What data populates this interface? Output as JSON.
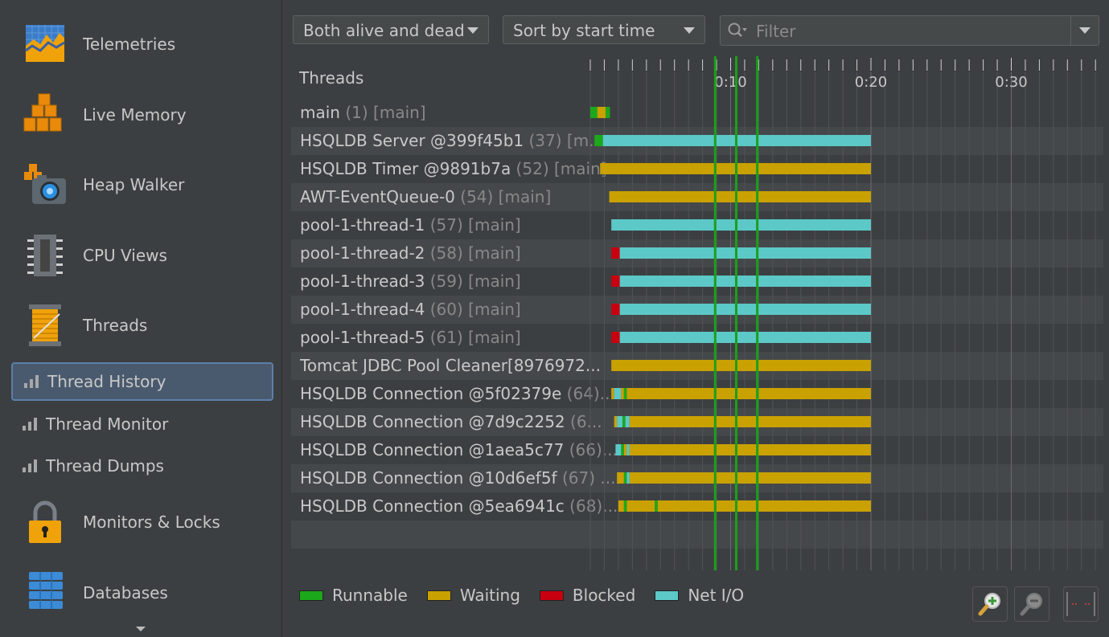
{
  "sidebar": {
    "items": [
      {
        "label": "Telemetries",
        "icon": "telemetries-icon"
      },
      {
        "label": "Live Memory",
        "icon": "live-memory-icon"
      },
      {
        "label": "Heap Walker",
        "icon": "heap-walker-icon"
      },
      {
        "label": "CPU Views",
        "icon": "cpu-views-icon"
      },
      {
        "label": "Threads",
        "icon": "threads-icon"
      }
    ],
    "subitems": [
      {
        "label": "Thread History",
        "selected": true
      },
      {
        "label": "Thread Monitor",
        "selected": false
      },
      {
        "label": "Thread Dumps",
        "selected": false
      }
    ],
    "items_bottom": [
      {
        "label": "Monitors & Locks",
        "icon": "lock-icon"
      },
      {
        "label": "Databases",
        "icon": "databases-icon"
      }
    ]
  },
  "toolbar": {
    "thread_filter": "Both alive and dead",
    "sort_mode": "Sort by start time",
    "filter_placeholder": "Filter"
  },
  "timeline": {
    "header": "Threads",
    "ticks": [
      "0:10",
      "0:20",
      "0:30"
    ],
    "tick_seconds": [
      10,
      20,
      30
    ],
    "markers_seconds": [
      8.9,
      10.4,
      11.9
    ],
    "threads": [
      {
        "name": "main",
        "meta": "(1) [main]",
        "segments": [
          [
            0,
            0.5,
            "runnable"
          ],
          [
            0.5,
            1.1,
            "waiting"
          ],
          [
            1.1,
            1.4,
            "runnable"
          ]
        ]
      },
      {
        "name": "HSQLDB Server @399f45b1",
        "meta": "(37) [m...",
        "segments": [
          [
            0.3,
            0.9,
            "runnable"
          ],
          [
            0.9,
            20,
            "netio"
          ]
        ]
      },
      {
        "name": "HSQLDB Timer @9891b7a",
        "meta": "(52) [main]",
        "segments": [
          [
            0.7,
            20,
            "waiting"
          ]
        ]
      },
      {
        "name": "AWT-EventQueue-0",
        "meta": "(54) [main]",
        "segments": [
          [
            1.35,
            20,
            "waiting"
          ]
        ]
      },
      {
        "name": "pool-1-thread-1",
        "meta": "(57) [main]",
        "segments": [
          [
            1.5,
            20,
            "netio"
          ]
        ]
      },
      {
        "name": "pool-1-thread-2",
        "meta": "(58) [main]",
        "segments": [
          [
            1.5,
            2.1,
            "blocked"
          ],
          [
            2.1,
            20,
            "netio"
          ]
        ]
      },
      {
        "name": "pool-1-thread-3",
        "meta": "(59) [main]",
        "segments": [
          [
            1.5,
            2.1,
            "blocked"
          ],
          [
            2.1,
            20,
            "netio"
          ]
        ]
      },
      {
        "name": "pool-1-thread-4",
        "meta": "(60) [main]",
        "segments": [
          [
            1.5,
            2.1,
            "blocked"
          ],
          [
            2.1,
            20,
            "netio"
          ]
        ]
      },
      {
        "name": "pool-1-thread-5",
        "meta": "(61) [main]",
        "segments": [
          [
            1.5,
            2.1,
            "blocked"
          ],
          [
            2.1,
            20,
            "netio"
          ]
        ]
      },
      {
        "name": "Tomcat JDBC Pool Cleaner[8976972...",
        "meta": "",
        "segments": [
          [
            1.5,
            20,
            "waiting"
          ]
        ]
      },
      {
        "name": "HSQLDB Connection @5f02379e",
        "meta": "(64)...",
        "segments": [
          [
            1.5,
            1.7,
            "waiting"
          ],
          [
            1.7,
            2.2,
            "netio"
          ],
          [
            2.2,
            2.4,
            "waiting"
          ],
          [
            2.4,
            2.6,
            "runnable"
          ],
          [
            2.6,
            11.9,
            "waiting"
          ],
          [
            11.9,
            12.0,
            "runnable"
          ],
          [
            12.0,
            20,
            "waiting"
          ]
        ]
      },
      {
        "name": "HSQLDB Connection @7d9c2252",
        "meta": "(6...",
        "segments": [
          [
            1.7,
            1.9,
            "waiting"
          ],
          [
            1.9,
            2.3,
            "netio"
          ],
          [
            2.3,
            2.5,
            "runnable"
          ],
          [
            2.5,
            2.8,
            "netio"
          ],
          [
            2.8,
            20,
            "waiting"
          ]
        ]
      },
      {
        "name": "HSQLDB Connection @1aea5c77",
        "meta": "(66)...",
        "segments": [
          [
            1.8,
            2.2,
            "netio"
          ],
          [
            2.2,
            2.4,
            "runnable"
          ],
          [
            2.4,
            2.6,
            "waiting"
          ],
          [
            2.6,
            2.8,
            "netio"
          ],
          [
            2.8,
            20,
            "waiting"
          ]
        ]
      },
      {
        "name": "HSQLDB Connection @10d6ef5f",
        "meta": "(67) ...",
        "segments": [
          [
            1.9,
            2.4,
            "waiting"
          ],
          [
            2.4,
            2.6,
            "runnable"
          ],
          [
            2.6,
            2.8,
            "netio"
          ],
          [
            2.8,
            20,
            "waiting"
          ]
        ]
      },
      {
        "name": "HSQLDB Connection @5ea6941c",
        "meta": "(68)...",
        "segments": [
          [
            2.0,
            2.4,
            "waiting"
          ],
          [
            2.4,
            2.6,
            "runnable"
          ],
          [
            2.6,
            4.6,
            "waiting"
          ],
          [
            4.6,
            4.8,
            "runnable"
          ],
          [
            4.8,
            20,
            "waiting"
          ]
        ]
      }
    ]
  },
  "legend": [
    {
      "label": "Runnable",
      "color": "#1ba81b"
    },
    {
      "label": "Waiting",
      "color": "#c9a100"
    },
    {
      "label": "Blocked",
      "color": "#c8000f"
    },
    {
      "label": "Net I/O",
      "color": "#5cc8c8"
    }
  ],
  "colors": {
    "runnable": "#1ba81b",
    "waiting": "#c9a100",
    "blocked": "#c8000f",
    "netio": "#5cc8c8"
  }
}
